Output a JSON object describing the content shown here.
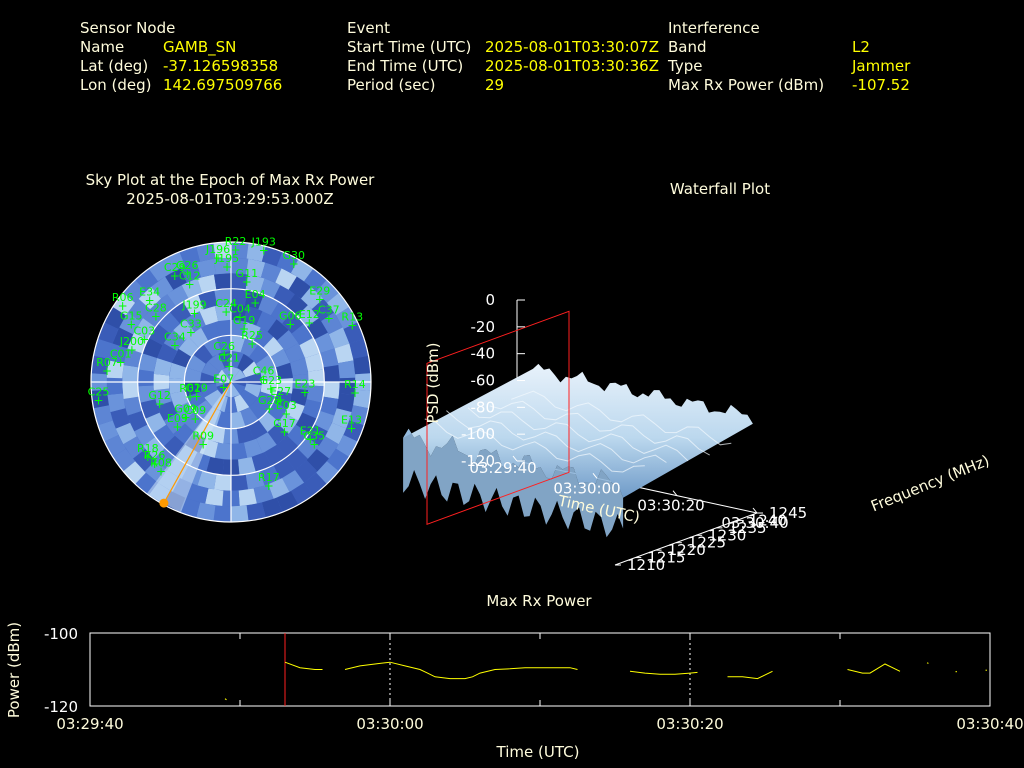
{
  "header": {
    "sensor": {
      "title": "Sensor Node",
      "rows": [
        {
          "label": "Name",
          "value": "GAMB_SN"
        },
        {
          "label": "Lat (deg)",
          "value": "-37.126598358"
        },
        {
          "label": "Lon (deg)",
          "value": "142.697509766"
        }
      ]
    },
    "event": {
      "title": "Event",
      "rows": [
        {
          "label": "Start Time (UTC)",
          "value": "2025-08-01T03:30:07Z"
        },
        {
          "label": "End Time (UTC)",
          "value": "2025-08-01T03:30:36Z"
        },
        {
          "label": "Period (sec)",
          "value": "29"
        }
      ]
    },
    "interference": {
      "title": "Interference",
      "rows": [
        {
          "label": "Band",
          "value": "L2"
        },
        {
          "label": "Type",
          "value": "Jammer"
        },
        {
          "label": "Max Rx Power (dBm)",
          "value": "-107.52"
        }
      ]
    }
  },
  "chart_data": [
    {
      "type": "scatter",
      "polar": true,
      "title": "Sky Plot at the Epoch of Max Rx Power",
      "subtitle": "2025-08-01T03:29:53.000Z",
      "colors": {
        "satellite": "#00ff00",
        "jammer": "#ff9900",
        "grid": "#ffffff",
        "background": "#4a6fc8"
      },
      "satellites": [
        {
          "name": "R22",
          "az": 2,
          "el": 5
        },
        {
          "name": "J193",
          "az": 14,
          "el": 3
        },
        {
          "name": "J196",
          "az": 354,
          "el": 10
        },
        {
          "name": "J195",
          "az": 358,
          "el": 16
        },
        {
          "name": "G30",
          "az": 28,
          "el": 4
        },
        {
          "name": "G11",
          "az": 9,
          "el": 25
        },
        {
          "name": "C29",
          "az": 332,
          "el": 13
        },
        {
          "name": "G26",
          "az": 338,
          "el": 15
        },
        {
          "name": "C12",
          "az": 337,
          "el": 22
        },
        {
          "name": "R06",
          "az": 305,
          "el": 5
        },
        {
          "name": "E34",
          "az": 315,
          "el": 16
        },
        {
          "name": "G15",
          "az": 300,
          "el": 16
        },
        {
          "name": "C28",
          "az": 311,
          "el": 26
        },
        {
          "name": "J199",
          "az": 332,
          "el": 40
        },
        {
          "name": "C24",
          "az": 356,
          "el": 45
        },
        {
          "name": "E04",
          "az": 17,
          "el": 37
        },
        {
          "name": "C04",
          "az": 8,
          "el": 48
        },
        {
          "name": "E29",
          "az": 47,
          "el": 12
        },
        {
          "name": "C37",
          "az": 57,
          "el": 15
        },
        {
          "name": "R13",
          "az": 65,
          "el": 4
        },
        {
          "name": "J200",
          "az": 288,
          "el": 23
        },
        {
          "name": "C03",
          "az": 296,
          "el": 28
        },
        {
          "name": "C34",
          "az": 303,
          "el": 47
        },
        {
          "name": "C33",
          "az": 321,
          "el": 49
        },
        {
          "name": "G19",
          "az": 14,
          "el": 55
        },
        {
          "name": "G06",
          "az": 46,
          "el": 37
        },
        {
          "name": "E12",
          "az": 53,
          "el": 27
        },
        {
          "name": "R25",
          "az": 29,
          "el": 62
        },
        {
          "name": "C01",
          "az": 280,
          "el": 18
        },
        {
          "name": "C26",
          "az": 346,
          "el": 72
        },
        {
          "name": "C21",
          "az": 353,
          "el": 80
        },
        {
          "name": "E07",
          "az": 232,
          "el": 84
        },
        {
          "name": "C46",
          "az": 86,
          "el": 69
        },
        {
          "name": "R07",
          "az": 275,
          "el": 10
        },
        {
          "name": "R14",
          "az": 95,
          "el": 10
        },
        {
          "name": "E23",
          "az": 98,
          "el": 42
        },
        {
          "name": "E27",
          "az": 110,
          "el": 56
        },
        {
          "name": "E03",
          "az": 120,
          "el": 49
        },
        {
          "name": "G23",
          "az": 100,
          "el": 64
        },
        {
          "name": "G28",
          "az": 125,
          "el": 60
        },
        {
          "name": "G29",
          "az": 247,
          "el": 66
        },
        {
          "name": "R01",
          "az": 250,
          "el": 62
        },
        {
          "name": "C25",
          "az": 262,
          "el": 4
        },
        {
          "name": "G12",
          "az": 253,
          "el": 42
        },
        {
          "name": "G09",
          "az": 232,
          "el": 53
        },
        {
          "name": "C09",
          "az": 224,
          "el": 57
        },
        {
          "name": "E09",
          "az": 230,
          "el": 45
        },
        {
          "name": "R09",
          "az": 204,
          "el": 46
        },
        {
          "name": "G17",
          "az": 133,
          "el": 43
        },
        {
          "name": "E21",
          "az": 126,
          "el": 27
        },
        {
          "name": "C35",
          "az": 127,
          "el": 23
        },
        {
          "name": "E13",
          "az": 111,
          "el": 7
        },
        {
          "name": "R18",
          "az": 228,
          "el": 18
        },
        {
          "name": "R26",
          "az": 223,
          "el": 18
        },
        {
          "name": "R08",
          "az": 218,
          "el": 17
        },
        {
          "name": "R17",
          "az": 160,
          "el": 19
        }
      ],
      "jammer": {
        "az": 209,
        "el": 1
      }
    },
    {
      "type": "area",
      "title": "Waterfall Plot",
      "xlabel": "Time (UTC)",
      "ylabel": "Frequency (MHz)",
      "zlabel": "PSD (dBm)",
      "x_ticks": [
        "03:29:40",
        "03:30:00",
        "03:30:20",
        "03:30:40"
      ],
      "x_range": [
        0,
        60
      ],
      "y_ticks": [
        1210,
        1215,
        1220,
        1225,
        1230,
        1235,
        1240,
        1245
      ],
      "y_range": [
        1210,
        1245
      ],
      "z_ticks": [
        0,
        -20,
        -40,
        -60,
        -80,
        -100,
        -120
      ],
      "z_range": [
        -120,
        0
      ],
      "max_power_epoch_sec": 13,
      "surface_frequency_range": [
        1212,
        1244
      ],
      "surface_time_range": [
        5,
        60
      ],
      "surface_psd_range": [
        -95,
        -55
      ]
    },
    {
      "type": "line",
      "title": "Max Rx Power",
      "xlabel": "Time (UTC)",
      "ylabel": "Power (dBm)",
      "x_ticks": [
        "03:29:40",
        "03:30:00",
        "03:30:20",
        "03:30:40"
      ],
      "x_range": [
        0,
        60
      ],
      "ylim": [
        -120,
        -100
      ],
      "y_ticks": [
        -100,
        -120
      ],
      "max_power_epoch_sec": 13,
      "series": [
        {
          "x": [
            9,
            9.1
          ],
          "y": [
            -118.0,
            -118.3
          ]
        },
        {
          "x": [
            13,
            14,
            15,
            15.5
          ],
          "y": [
            -108,
            -109.5,
            -110,
            -110
          ]
        },
        {
          "x": [
            17,
            18,
            19,
            20,
            21,
            22,
            22.5,
            23,
            24,
            25,
            25.5,
            26,
            27,
            28,
            29,
            30,
            31,
            32,
            32.5
          ],
          "y": [
            -110,
            -109,
            -108.5,
            -108,
            -109,
            -110,
            -111,
            -112,
            -112.5,
            -112.5,
            -112,
            -111,
            -110,
            -109.8,
            -109.5,
            -109.5,
            -109.5,
            -109.5,
            -110
          ]
        },
        {
          "x": [
            36,
            37,
            38,
            39,
            40,
            40.5
          ],
          "y": [
            -110.5,
            -111,
            -111.3,
            -111.3,
            -111,
            -110.8
          ]
        },
        {
          "x": [
            42.5,
            43.5,
            44.5,
            45.5
          ],
          "y": [
            -112,
            -112,
            -112.5,
            -110.5
          ]
        },
        {
          "x": [
            50.5,
            51.5,
            52,
            53,
            54
          ],
          "y": [
            -110,
            -111,
            -111,
            -108.5,
            -110.5
          ]
        },
        {
          "x": [
            55.8,
            55.9
          ],
          "y": [
            -108.2,
            -108.3
          ]
        },
        {
          "x": [
            57.7,
            57.8
          ],
          "y": [
            -110.6,
            -110.6
          ]
        },
        {
          "x": [
            59.7,
            59.8
          ],
          "y": [
            -110.2,
            -110.2
          ]
        }
      ]
    }
  ]
}
